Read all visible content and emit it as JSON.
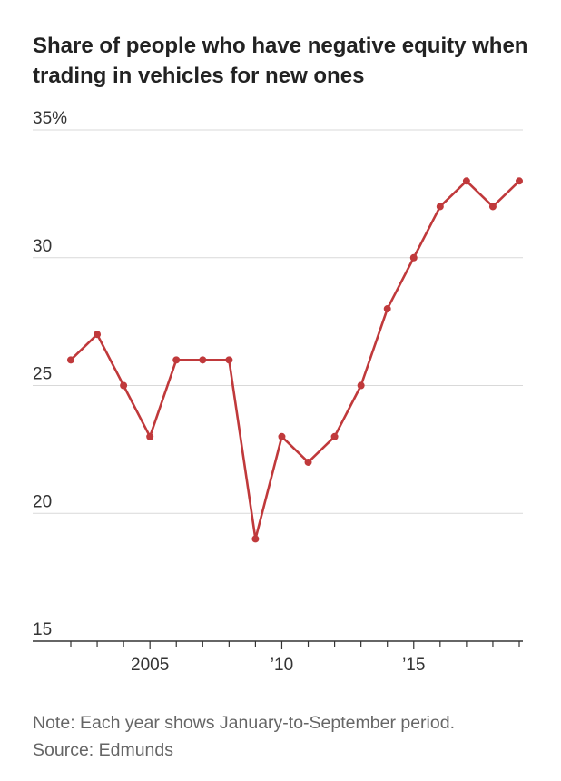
{
  "title": "Share of people who have negative equity when trading in vehicles for new ones",
  "note": "Note: Each year shows January-to-September period.",
  "source": "Source: Edmunds",
  "colors": {
    "line": "#c0393b",
    "grid": "#d9d9d9",
    "axis": "#333333"
  },
  "chart_data": {
    "type": "line",
    "title": "Share of people who have negative equity when trading in vehicles for new ones",
    "xlabel": "",
    "ylabel": "",
    "x": [
      2002,
      2003,
      2004,
      2005,
      2006,
      2007,
      2008,
      2009,
      2010,
      2011,
      2012,
      2013,
      2014,
      2015,
      2016,
      2017,
      2018,
      2019
    ],
    "series": [
      {
        "values": [
          26,
          27,
          25,
          23,
          26,
          26,
          26,
          19,
          23,
          22,
          23,
          25,
          28,
          30,
          32,
          33,
          32,
          33
        ]
      }
    ],
    "ylim": [
      15,
      35
    ],
    "xlim": [
      2002,
      2019
    ],
    "yticks": [
      15,
      20,
      25,
      30,
      35
    ],
    "ytick_labels": [
      "15",
      "20",
      "25",
      "30",
      "35%"
    ],
    "xticks": [
      2002,
      2003,
      2004,
      2005,
      2006,
      2007,
      2008,
      2009,
      2010,
      2011,
      2012,
      2013,
      2014,
      2015,
      2016,
      2017,
      2018,
      2019
    ],
    "xtick_labels": [
      {
        "x": 2005,
        "label": "2005"
      },
      {
        "x": 2010,
        "label": "’10"
      },
      {
        "x": 2015,
        "label": "’15"
      }
    ],
    "grid": true,
    "legend": "none"
  }
}
